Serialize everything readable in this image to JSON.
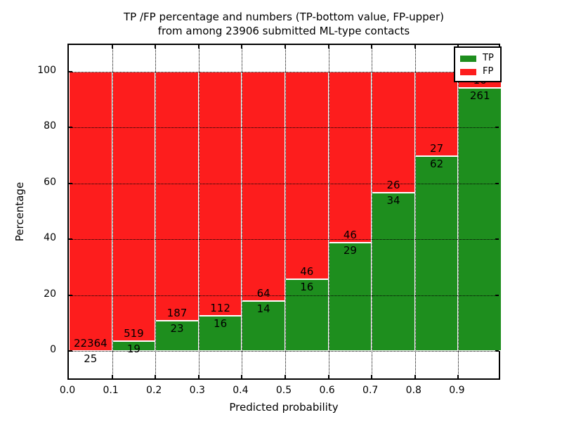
{
  "chart_data": {
    "type": "bar",
    "stacked": true,
    "title_line1": "TP /FP percentage and numbers (TP-bottom value, FP-upper)",
    "title_line2": "from among 23906 submitted ML-type contacts",
    "xlabel": "Predicted probability",
    "ylabel": "Percentage",
    "total_submitted_contacts": 23906,
    "x_tick_labels": [
      "0.0",
      "0.1",
      "0.2",
      "0.3",
      "0.4",
      "0.5",
      "0.6",
      "0.7",
      "0.8",
      "0.9"
    ],
    "y_tick_values": [
      0,
      20,
      40,
      60,
      80,
      100
    ],
    "xlim": [
      0.0,
      1.0
    ],
    "ylim": [
      -11,
      110
    ],
    "grid": "dotted-black",
    "legend_position": "upper-right",
    "bar_value_unit": "percent of bin (TP+FP stack to 100%)",
    "series": [
      {
        "name": "TP",
        "color": "#1e8e1e",
        "counts": [
          25,
          19,
          23,
          16,
          14,
          16,
          29,
          34,
          62,
          261
        ]
      },
      {
        "name": "FP",
        "color": "#fd1d1d",
        "counts": [
          22364,
          519,
          187,
          112,
          64,
          46,
          46,
          26,
          27,
          16
        ]
      }
    ],
    "bins": [
      {
        "range": "0.0-0.1",
        "tp": 25,
        "fp": 22364
      },
      {
        "range": "0.1-0.2",
        "tp": 19,
        "fp": 519
      },
      {
        "range": "0.2-0.3",
        "tp": 23,
        "fp": 187
      },
      {
        "range": "0.3-0.4",
        "tp": 16,
        "fp": 112
      },
      {
        "range": "0.4-0.5",
        "tp": 14,
        "fp": 64
      },
      {
        "range": "0.5-0.6",
        "tp": 16,
        "fp": 46
      },
      {
        "range": "0.6-0.7",
        "tp": 29,
        "fp": 46
      },
      {
        "range": "0.7-0.8",
        "tp": 34,
        "fp": 26
      },
      {
        "range": "0.8-0.9",
        "tp": 62,
        "fp": 27
      },
      {
        "range": "0.9-1.0",
        "tp": 261,
        "fp": 16
      }
    ],
    "colors": {
      "tp_green": "#1e8e1e",
      "fp_red": "#fd1d1d",
      "background": "#ffffff",
      "axes": "#000000"
    }
  }
}
